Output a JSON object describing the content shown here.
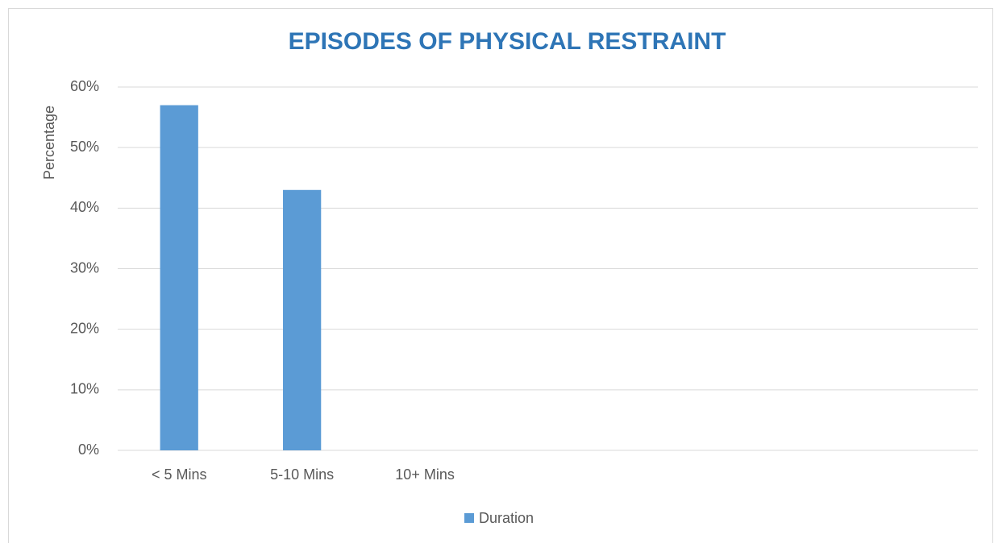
{
  "chart_data": {
    "type": "bar",
    "title": "EPISODES OF PHYSICAL RESTRAINT",
    "y_label": "Percentage",
    "categories": [
      "< 5 Mins",
      "5-10 Mins",
      "10+ Mins",
      null,
      null,
      null,
      null
    ],
    "series": [
      {
        "name": "Duration",
        "color": "#5b9bd5",
        "values": [
          57,
          43,
          0,
          null,
          null,
          null,
          null
        ]
      }
    ],
    "ylim": [
      0,
      60
    ],
    "yticks": [
      {
        "value": 0,
        "label": "0%"
      },
      {
        "value": 10,
        "label": "10%"
      },
      {
        "value": 20,
        "label": "20%"
      },
      {
        "value": 30,
        "label": "30%"
      },
      {
        "value": 40,
        "label": "40%"
      },
      {
        "value": 50,
        "label": "50%"
      },
      {
        "value": 60,
        "label": "60%"
      }
    ],
    "grid": true,
    "legend": "bottom"
  }
}
